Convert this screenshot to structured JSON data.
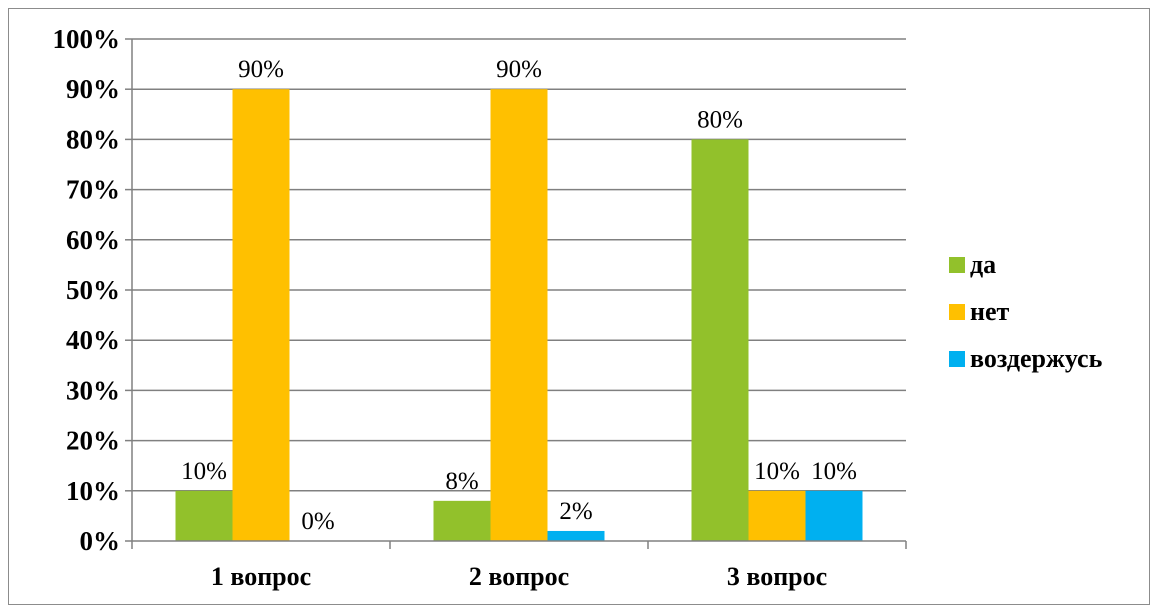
{
  "chart_data": {
    "type": "bar",
    "categories": [
      "1 вопрос",
      "2 вопрос",
      "3 вопрос"
    ],
    "series": [
      {
        "name": "да",
        "values": [
          10,
          8,
          80
        ],
        "labels": [
          "10%",
          "8%",
          "80%"
        ],
        "color": "#92c12b"
      },
      {
        "name": "нет",
        "values": [
          90,
          90,
          10
        ],
        "labels": [
          "90%",
          "90%",
          "10%"
        ],
        "color": "#ffc000"
      },
      {
        "name": "воздержусь",
        "values": [
          0,
          2,
          10
        ],
        "labels": [
          "0%",
          "2%",
          "10%"
        ],
        "color": "#00b0f0"
      }
    ],
    "y_ticks": [
      "0%",
      "10%",
      "20%",
      "30%",
      "40%",
      "50%",
      "60%",
      "70%",
      "80%",
      "90%",
      "100%"
    ],
    "ylim": [
      0,
      100
    ],
    "grid": true,
    "legend_position": "right",
    "axis_color": "#808080",
    "grid_color": "#808080"
  }
}
